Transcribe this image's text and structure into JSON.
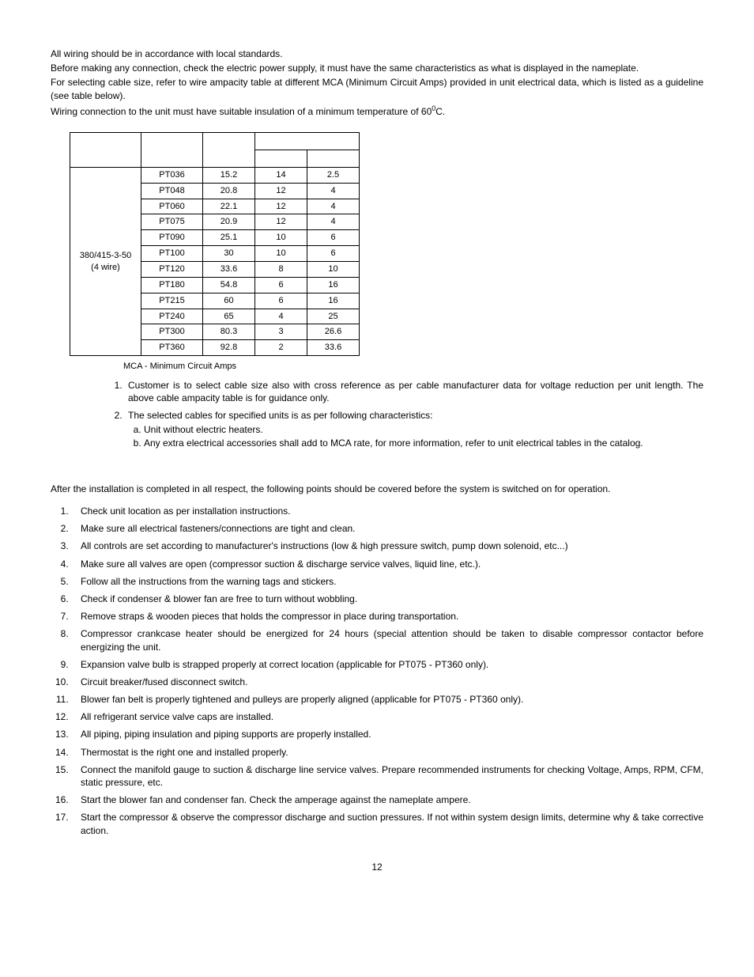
{
  "intro": {
    "p1": "All wiring should be in accordance with local standards.",
    "p2": "Before making any connection, check the electric power supply, it must have the same characteristics as what is displayed in the nameplate.",
    "p3": "For selecting cable size, refer to wire ampacity table at different MCA (Minimum Circuit Amps) provided in unit electrical data, which is listed as a guideline (see table below).",
    "p4_a": "Wiring connection to the unit must have suitable insulation of a minimum temperature of 60",
    "p4_sup": "0",
    "p4_b": "C."
  },
  "table": {
    "power_supply_label": "380/415-3-50",
    "power_supply_sub": "(4 wire)",
    "header_row1_h": 22,
    "header_row2_h": 22,
    "rows": [
      {
        "model": "PT036",
        "mca": "15.2",
        "awg": "14",
        "mm2": "2.5"
      },
      {
        "model": "PT048",
        "mca": "20.8",
        "awg": "12",
        "mm2": "4"
      },
      {
        "model": "PT060",
        "mca": "22.1",
        "awg": "12",
        "mm2": "4"
      },
      {
        "model": "PT075",
        "mca": "20.9",
        "awg": "12",
        "mm2": "4"
      },
      {
        "model": "PT090",
        "mca": "25.1",
        "awg": "10",
        "mm2": "6"
      },
      {
        "model": "PT100",
        "mca": "30",
        "awg": "10",
        "mm2": "6"
      },
      {
        "model": "PT120",
        "mca": "33.6",
        "awg": "8",
        "mm2": "10"
      },
      {
        "model": "PT180",
        "mca": "54.8",
        "awg": "6",
        "mm2": "16"
      },
      {
        "model": "PT215",
        "mca": "60",
        "awg": "6",
        "mm2": "16"
      },
      {
        "model": "PT240",
        "mca": "65",
        "awg": "4",
        "mm2": "25"
      },
      {
        "model": "PT300",
        "mca": "80.3",
        "awg": "3",
        "mm2": "26.6"
      },
      {
        "model": "PT360",
        "mca": "92.8",
        "awg": "2",
        "mm2": "33.6"
      }
    ]
  },
  "mca_note": "MCA - Minimum Circuit Amps",
  "notes": {
    "n1": "Customer is to select cable size also with cross reference as per cable manufacturer data for voltage reduction per unit length. The above cable ampacity table is for guidance only.",
    "n2": "The selected cables for specified units is as per following characteristics:",
    "n2a": "Unit without electric heaters.",
    "n2b": "Any extra electrical accessories shall add to MCA rate, for more information, refer to unit electrical tables in the catalog."
  },
  "after_install_intro": "After the installation is completed in all respect, the following points should be covered before the system is switched on for operation.",
  "checklist": [
    "Check unit location as per installation instructions.",
    "Make sure all electrical fasteners/connections are tight and clean.",
    "All controls are set according to manufacturer's instructions (low & high pressure switch, pump down solenoid, etc...)",
    "Make sure all valves are open (compressor suction & discharge service valves, liquid line, etc.).",
    "Follow all the instructions from the warning tags and stickers.",
    "Check if condenser & blower fan are free to turn without wobbling.",
    "Remove straps & wooden pieces that holds the compressor in place during transportation.",
    "Compressor crankcase heater should be energized for 24 hours (special attention should be taken to disable compressor contactor before energizing the unit.",
    "Expansion valve bulb is strapped properly at correct location (applicable for PT075 - PT360 only).",
    "Circuit breaker/fused disconnect switch.",
    "Blower fan belt is properly tightened and pulleys are properly aligned (applicable for PT075 - PT360 only).",
    "All refrigerant service valve caps are installed.",
    "All piping, piping insulation and piping supports are properly installed.",
    "Thermostat is the right one and installed properly.",
    "Connect the manifold gauge to suction & discharge line service valves. Prepare recommended instruments for checking Voltage, Amps, RPM, CFM, static pressure, etc.",
    "Start the blower fan and condenser fan. Check the amperage against the nameplate ampere.",
    "Start the compressor & observe the compressor discharge and suction pressures. If not within system design limits, determine why & take corrective action."
  ],
  "page_number": "12"
}
